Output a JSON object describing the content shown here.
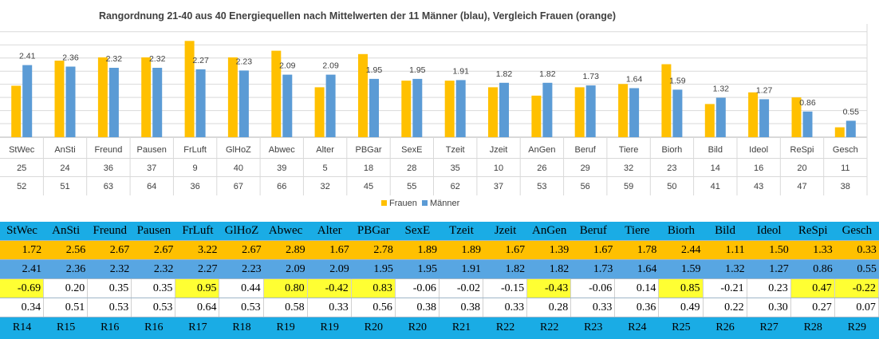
{
  "chart_data": {
    "type": "bar",
    "title": "Rangordnung 21-40 aus 40 Energiequellen nach Mittelwerten der 11 Männer (blau), Vergleich Frauen (orange)",
    "categories": [
      "StWec",
      "AnSti",
      "Freund",
      "Pausen",
      "FrLuft",
      "GlHoZ",
      "Abwec",
      "Alter",
      "PBGar",
      "SexE",
      "Tzeit",
      "Jzeit",
      "AnGen",
      "Beruf",
      "Tiere",
      "Biorh",
      "Bild",
      "Ideol",
      "ReSpi",
      "Gesch"
    ],
    "series": [
      {
        "name": "Frauen",
        "color": "#ffc000",
        "values": [
          1.72,
          2.56,
          2.67,
          2.67,
          3.22,
          2.67,
          2.89,
          1.67,
          2.78,
          1.89,
          1.89,
          1.67,
          1.39,
          1.67,
          1.78,
          2.44,
          1.11,
          1.5,
          1.33,
          0.33
        ]
      },
      {
        "name": "Männer",
        "color": "#5b9bd5",
        "values": [
          2.41,
          2.36,
          2.32,
          2.32,
          2.27,
          2.23,
          2.09,
          2.09,
          1.95,
          1.95,
          1.91,
          1.82,
          1.82,
          1.73,
          1.64,
          1.59,
          1.32,
          1.27,
          0.86,
          0.55
        ]
      }
    ],
    "data_labels": [
      "2.41",
      "2.36",
      "2.32",
      "2.32",
      "2.27",
      "2.23",
      "2.09",
      "2.09",
      "1.95",
      "1.95",
      "1.91",
      "1.82",
      "1.82",
      "1.73",
      "1.64",
      "1.59",
      "1.32",
      "1.27",
      "0.86",
      "0.55"
    ],
    "axis_rows": [
      [
        "25",
        "24",
        "36",
        "37",
        "9",
        "40",
        "39",
        "5",
        "18",
        "28",
        "35",
        "10",
        "26",
        "29",
        "32",
        "23",
        "14",
        "16",
        "20",
        "11"
      ],
      [
        "52",
        "51",
        "63",
        "64",
        "36",
        "67",
        "66",
        "32",
        "45",
        "55",
        "62",
        "37",
        "53",
        "56",
        "59",
        "50",
        "41",
        "43",
        "47",
        "38"
      ]
    ],
    "ylim": [
      0,
      3.6
    ],
    "grid": true,
    "legend": "bottom-right"
  },
  "table": {
    "names": [
      "StWec",
      "AnSti",
      "Freund",
      "Pausen",
      "FrLuft",
      "GlHoZ",
      "Abwec",
      "Alter",
      "PBGar",
      "SexE",
      "Tzeit",
      "Jzeit",
      "AnGen",
      "Beruf",
      "Tiere",
      "Biorh",
      "Bild",
      "Ideol",
      "ReSpi",
      "Gesch"
    ],
    "frauen": [
      "1.72",
      "2.56",
      "2.67",
      "2.67",
      "3.22",
      "2.67",
      "2.89",
      "1.67",
      "2.78",
      "1.89",
      "1.89",
      "1.67",
      "1.39",
      "1.67",
      "1.78",
      "2.44",
      "1.11",
      "1.50",
      "1.33",
      "0.33"
    ],
    "maenner": [
      "2.41",
      "2.36",
      "2.32",
      "2.32",
      "2.27",
      "2.23",
      "2.09",
      "2.09",
      "1.95",
      "1.95",
      "1.91",
      "1.82",
      "1.82",
      "1.73",
      "1.64",
      "1.59",
      "1.32",
      "1.27",
      "0.86",
      "0.55"
    ],
    "diff": [
      "-0.69",
      "0.20",
      "0.35",
      "0.35",
      "0.95",
      "0.44",
      "0.80",
      "-0.42",
      "0.83",
      "-0.06",
      "-0.02",
      "-0.15",
      "-0.43",
      "-0.06",
      "0.14",
      "0.85",
      "-0.21",
      "0.23",
      "0.47",
      "-0.22"
    ],
    "diff_highlight": [
      true,
      false,
      false,
      false,
      true,
      false,
      true,
      true,
      true,
      false,
      false,
      false,
      true,
      false,
      false,
      true,
      false,
      false,
      true,
      true
    ],
    "ratio": [
      "0.34",
      "0.51",
      "0.53",
      "0.53",
      "0.64",
      "0.53",
      "0.58",
      "0.33",
      "0.56",
      "0.38",
      "0.38",
      "0.33",
      "0.28",
      "0.33",
      "0.36",
      "0.49",
      "0.22",
      "0.30",
      "0.27",
      "0.07"
    ],
    "ranks": [
      "R14",
      "R15",
      "R16",
      "R16",
      "R17",
      "R18",
      "R19",
      "R19",
      "R20",
      "R20",
      "R21",
      "R22",
      "R22",
      "R23",
      "R24",
      "R25",
      "R26",
      "R27",
      "R28",
      "R29"
    ],
    "highlight_color": "#ffff33"
  }
}
